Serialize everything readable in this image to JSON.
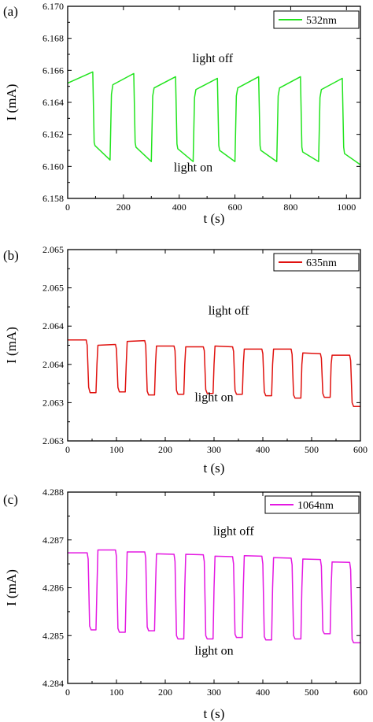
{
  "chart_data": [
    {
      "type": "line",
      "panel_label": "(a)",
      "xlabel": "t (s)",
      "ylabel": "I (mA)",
      "xlim": [
        0,
        1050
      ],
      "ylim": [
        6.158,
        6.17
      ],
      "xticks": [
        0,
        200,
        400,
        600,
        800,
        1000
      ],
      "xtick_labels": [
        "0",
        "200",
        "400",
        "600",
        "800",
        "1000"
      ],
      "yticks": [
        6.158,
        6.16,
        6.162,
        6.164,
        6.166,
        6.168,
        6.17
      ],
      "ytick_labels": [
        "6.158",
        "6.160",
        "6.162",
        "6.164",
        "6.166",
        "6.168",
        "6.170"
      ],
      "legend_placement": "top-right",
      "annotations": [
        {
          "text": "light off",
          "x": 520,
          "y": 6.1665
        },
        {
          "text": "light on",
          "x": 450,
          "y": 6.1597
        }
      ],
      "series": [
        {
          "name": "532nm",
          "color": "#22e41e",
          "points": [
            [
              0,
              6.1652
            ],
            [
              90,
              6.1659
            ],
            [
              95,
              6.1615
            ],
            [
              98,
              6.1613
            ],
            [
              152,
              6.1604
            ],
            [
              157,
              6.1645
            ],
            [
              162,
              6.1651
            ],
            [
              237,
              6.1658
            ],
            [
              242,
              6.1615
            ],
            [
              245,
              6.1612
            ],
            [
              300,
              6.1603
            ],
            [
              305,
              6.1644
            ],
            [
              310,
              6.1649
            ],
            [
              387,
              6.1656
            ],
            [
              392,
              6.1614
            ],
            [
              395,
              6.1611
            ],
            [
              450,
              6.1603
            ],
            [
              455,
              6.1643
            ],
            [
              460,
              6.1648
            ],
            [
              537,
              6.1655
            ],
            [
              542,
              6.1613
            ],
            [
              545,
              6.161
            ],
            [
              600,
              6.1603
            ],
            [
              605,
              6.1644
            ],
            [
              610,
              6.1649
            ],
            [
              685,
              6.1656
            ],
            [
              690,
              6.1613
            ],
            [
              693,
              6.161
            ],
            [
              750,
              6.1603
            ],
            [
              755,
              6.1644
            ],
            [
              760,
              6.1649
            ],
            [
              835,
              6.1656
            ],
            [
              840,
              6.1612
            ],
            [
              843,
              6.1609
            ],
            [
              900,
              6.1603
            ],
            [
              905,
              6.1643
            ],
            [
              910,
              6.1648
            ],
            [
              985,
              6.1655
            ],
            [
              990,
              6.1612
            ],
            [
              993,
              6.1608
            ],
            [
              1050,
              6.1601
            ]
          ]
        }
      ]
    },
    {
      "type": "line",
      "panel_label": "(b)",
      "xlabel": "t (s)",
      "ylabel": "I (mA)",
      "xlim": [
        0,
        600
      ],
      "ylim": [
        2.063,
        2.0655
      ],
      "xticks": [
        0,
        100,
        200,
        300,
        400,
        500,
        600
      ],
      "xtick_labels": [
        "0",
        "100",
        "200",
        "300",
        "400",
        "500",
        "600"
      ],
      "yticks": [
        2.063,
        2.0635,
        2.064,
        2.0645,
        2.065,
        2.0655
      ],
      "ytick_labels": [
        "2.063",
        "2.063",
        "2.064",
        "2.064",
        "2.065",
        "2.065"
      ],
      "legend_placement": "top-right",
      "annotations": [
        {
          "text": "light off",
          "x": 330,
          "y": 2.06465
        },
        {
          "text": "light on",
          "x": 300,
          "y": 2.06352
        }
      ],
      "series": [
        {
          "name": "635nm",
          "color": "#e0120f",
          "points": [
            [
              0,
              2.06432
            ],
            [
              38,
              2.06432
            ],
            [
              40,
              2.06425
            ],
            [
              43,
              2.0637
            ],
            [
              46,
              2.06363
            ],
            [
              58,
              2.06363
            ],
            [
              60,
              2.064
            ],
            [
              62,
              2.06425
            ],
            [
              98,
              2.06426
            ],
            [
              100,
              2.0642
            ],
            [
              103,
              2.0637
            ],
            [
              106,
              2.06364
            ],
            [
              118,
              2.06364
            ],
            [
              120,
              2.064
            ],
            [
              122,
              2.0643
            ],
            [
              158,
              2.06431
            ],
            [
              160,
              2.06425
            ],
            [
              163,
              2.06365
            ],
            [
              166,
              2.0636
            ],
            [
              178,
              2.0636
            ],
            [
              180,
              2.064
            ],
            [
              182,
              2.06424
            ],
            [
              218,
              2.06424
            ],
            [
              220,
              2.06418
            ],
            [
              223,
              2.06366
            ],
            [
              226,
              2.06361
            ],
            [
              238,
              2.06361
            ],
            [
              240,
              2.064
            ],
            [
              242,
              2.06423
            ],
            [
              278,
              2.06423
            ],
            [
              280,
              2.06418
            ],
            [
              283,
              2.06367
            ],
            [
              286,
              2.06362
            ],
            [
              298,
              2.06362
            ],
            [
              300,
              2.064
            ],
            [
              302,
              2.06424
            ],
            [
              338,
              2.06423
            ],
            [
              340,
              2.06417
            ],
            [
              343,
              2.06366
            ],
            [
              346,
              2.06361
            ],
            [
              358,
              2.06361
            ],
            [
              360,
              2.064
            ],
            [
              362,
              2.0642
            ],
            [
              398,
              2.0642
            ],
            [
              400,
              2.06414
            ],
            [
              403,
              2.06364
            ],
            [
              406,
              2.06359
            ],
            [
              418,
              2.06359
            ],
            [
              420,
              2.064
            ],
            [
              422,
              2.0642
            ],
            [
              458,
              2.0642
            ],
            [
              460,
              2.06413
            ],
            [
              463,
              2.0636
            ],
            [
              466,
              2.06356
            ],
            [
              478,
              2.06356
            ],
            [
              480,
              2.064
            ],
            [
              482,
              2.06415
            ],
            [
              518,
              2.06414
            ],
            [
              520,
              2.06408
            ],
            [
              523,
              2.06362
            ],
            [
              526,
              2.06357
            ],
            [
              538,
              2.06357
            ],
            [
              540,
              2.064
            ],
            [
              542,
              2.06412
            ],
            [
              578,
              2.06412
            ],
            [
              580,
              2.06405
            ],
            [
              583,
              2.0635
            ],
            [
              586,
              2.06345
            ],
            [
              600,
              2.06345
            ]
          ]
        }
      ]
    },
    {
      "type": "line",
      "panel_label": "(c)",
      "xlabel": "t (s)",
      "ylabel": "I (mA)",
      "xlim": [
        0,
        600
      ],
      "ylim": [
        4.284,
        4.288
      ],
      "xticks": [
        0,
        100,
        200,
        300,
        400,
        500,
        600
      ],
      "xtick_labels": [
        "0",
        "100",
        "200",
        "300",
        "400",
        "500",
        "600"
      ],
      "yticks": [
        4.284,
        4.285,
        4.286,
        4.287,
        4.288
      ],
      "ytick_labels": [
        "4.284",
        "4.285",
        "4.286",
        "4.287",
        "4.288"
      ],
      "legend_placement": "top-right",
      "annotations": [
        {
          "text": "light off",
          "x": 340,
          "y": 4.2871
        },
        {
          "text": "light on",
          "x": 300,
          "y": 4.2846
        }
      ],
      "series": [
        {
          "name": "1064nm",
          "color": "#e418e2",
          "points": [
            [
              0,
              4.28673
            ],
            [
              40,
              4.28673
            ],
            [
              42,
              4.2866
            ],
            [
              45,
              4.2852
            ],
            [
              48,
              4.28512
            ],
            [
              58,
              4.28512
            ],
            [
              60,
              4.286
            ],
            [
              62,
              4.28679
            ],
            [
              98,
              4.28679
            ],
            [
              100,
              4.28665
            ],
            [
              103,
              4.28515
            ],
            [
              106,
              4.28507
            ],
            [
              118,
              4.28507
            ],
            [
              120,
              4.286
            ],
            [
              122,
              4.28675
            ],
            [
              158,
              4.28675
            ],
            [
              160,
              4.28662
            ],
            [
              163,
              4.28518
            ],
            [
              166,
              4.2851
            ],
            [
              178,
              4.2851
            ],
            [
              180,
              4.286
            ],
            [
              182,
              4.28671
            ],
            [
              218,
              4.2867
            ],
            [
              220,
              4.28655
            ],
            [
              223,
              4.285
            ],
            [
              226,
              4.28493
            ],
            [
              238,
              4.28493
            ],
            [
              240,
              4.286
            ],
            [
              242,
              4.2867
            ],
            [
              278,
              4.28669
            ],
            [
              280,
              4.28655
            ],
            [
              283,
              4.285
            ],
            [
              286,
              4.28493
            ],
            [
              298,
              4.28493
            ],
            [
              300,
              4.286
            ],
            [
              302,
              4.28666
            ],
            [
              338,
              4.28665
            ],
            [
              340,
              4.2865
            ],
            [
              343,
              4.28503
            ],
            [
              346,
              4.28496
            ],
            [
              358,
              4.28496
            ],
            [
              360,
              4.286
            ],
            [
              362,
              4.28667
            ],
            [
              398,
              4.28666
            ],
            [
              400,
              4.2865
            ],
            [
              403,
              4.28498
            ],
            [
              406,
              4.28491
            ],
            [
              418,
              4.28491
            ],
            [
              420,
              4.286
            ],
            [
              422,
              4.28663
            ],
            [
              458,
              4.28662
            ],
            [
              460,
              4.28648
            ],
            [
              463,
              4.285
            ],
            [
              466,
              4.28493
            ],
            [
              478,
              4.28493
            ],
            [
              480,
              4.286
            ],
            [
              482,
              4.2866
            ],
            [
              518,
              4.28659
            ],
            [
              520,
              4.28645
            ],
            [
              523,
              4.2851
            ],
            [
              526,
              4.28504
            ],
            [
              538,
              4.28504
            ],
            [
              540,
              4.286
            ],
            [
              542,
              4.28654
            ],
            [
              578,
              4.28653
            ],
            [
              580,
              4.28638
            ],
            [
              583,
              4.28492
            ],
            [
              586,
              4.28485
            ],
            [
              600,
              4.28485
            ]
          ]
        }
      ]
    }
  ]
}
